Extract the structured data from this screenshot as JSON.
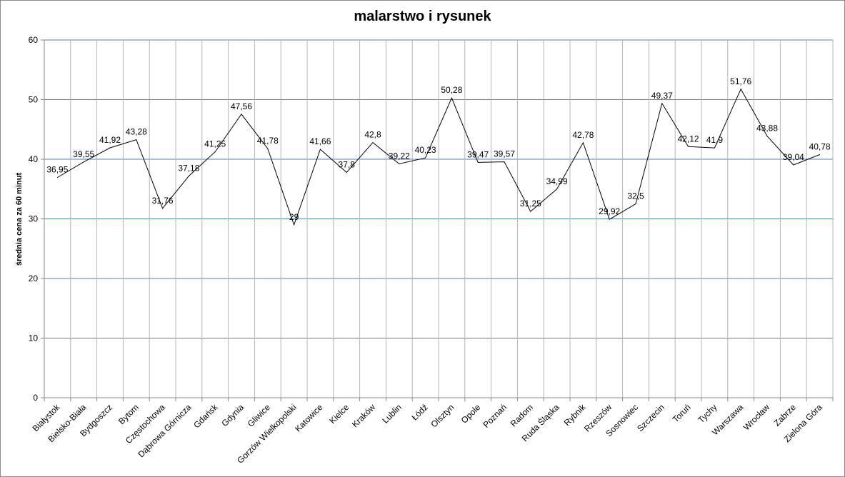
{
  "chart_data": {
    "type": "line",
    "title": "malarstwo i rysunek",
    "xlabel": "",
    "ylabel": "średnia cena za 60 minut",
    "ylim": [
      0,
      60
    ],
    "yticks": [
      0,
      10,
      20,
      30,
      40,
      50,
      60
    ],
    "grid": true,
    "legend": "none",
    "line_color": "#000000",
    "grid_color": "#4f81bd",
    "categories": [
      "Białystok",
      "Bielsko-Biała",
      "Bydgoszcz",
      "Bytom",
      "Częstochowa",
      "Dąbrowa Górnicza",
      "Gdańsk",
      "Gdynia",
      "Gliwice",
      "Gorzów Wielkopolski",
      "Katowice",
      "Kielce",
      "Kraków",
      "Lublin",
      "Łódź",
      "Olsztyn",
      "Opole",
      "Poznań",
      "Radom",
      "Ruda Śląska",
      "Rybnik",
      "Rzeszów",
      "Sosnowiec",
      "Szczecin",
      "Toruń",
      "Tychy",
      "Warszawa",
      "Wrocław",
      "Zabrze",
      "Zielona Góra"
    ],
    "values": [
      36.95,
      39.55,
      41.92,
      43.28,
      31.76,
      37.18,
      41.25,
      47.56,
      41.78,
      29,
      41.66,
      37.8,
      42.8,
      39.22,
      40.23,
      50.28,
      39.47,
      39.57,
      31.25,
      34.99,
      42.78,
      29.92,
      32.5,
      49.37,
      42.12,
      41.9,
      51.76,
      43.88,
      39.04,
      40.78
    ],
    "data_labels": [
      "36,95",
      "39,55",
      "41,92",
      "43,28",
      "31,76",
      "37,18",
      "41,25",
      "47,56",
      "41,78",
      "29",
      "41,66",
      "37,8",
      "42,8",
      "39,22",
      "40,23",
      "50,28",
      "39,47",
      "39,57",
      "31,25",
      "34,99",
      "42,78",
      "29,92",
      "32,5",
      "49,37",
      "42,12",
      "41,9",
      "51,76",
      "43,88",
      "39,04",
      "40,78"
    ]
  }
}
